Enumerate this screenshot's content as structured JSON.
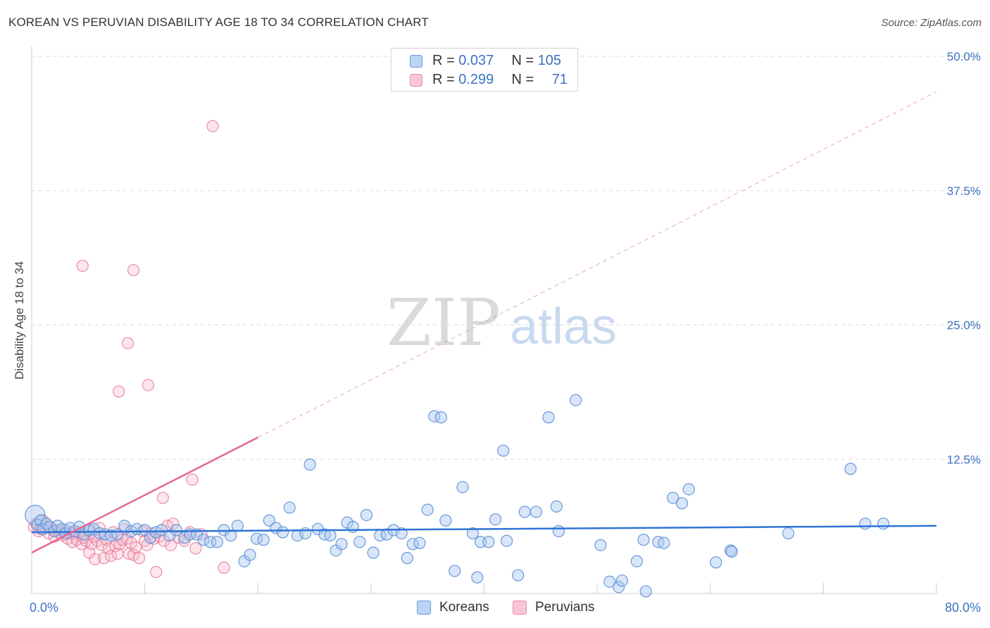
{
  "header": {
    "title": "KOREAN VS PERUVIAN DISABILITY AGE 18 TO 34 CORRELATION CHART",
    "source": "Source: ZipAtlas.com"
  },
  "watermark": {
    "zip": "ZIP",
    "atlas": "atlas"
  },
  "legend_top": {
    "koreans": {
      "r_label": "R = ",
      "r_value": "0.037",
      "n_label": "N = ",
      "n_value": "105"
    },
    "peruvians": {
      "r_label": "R = ",
      "r_value": "0.299",
      "n_label": "N = ",
      "n_value": "71"
    }
  },
  "legend_bottom": {
    "koreans": "Koreans",
    "peruvians": "Peruvians"
  },
  "colors": {
    "korean_fill": "#a8c8f0",
    "korean_stroke": "#5b8fd6",
    "korean_line": "#2e74d6",
    "peruvian_fill": "#f5b6c8",
    "peruvian_stroke": "#e8799a",
    "peruvian_line": "#e56792",
    "grid": "#d9d9d9",
    "tick_label": "#3b72c0"
  },
  "chart_data": {
    "type": "scatter",
    "title": "KOREAN VS PERUVIAN DISABILITY AGE 18 TO 34 CORRELATION CHART",
    "xlabel": "",
    "ylabel": "Disability Age 18 to 34",
    "xlim": [
      0,
      80
    ],
    "ylim": [
      0,
      50
    ],
    "x_tick_labels": [
      "0.0%",
      "80.0%"
    ],
    "y_ticks": [
      12.5,
      25.0,
      37.5,
      50.0
    ],
    "y_tick_labels": [
      "12.5%",
      "25.0%",
      "37.5%",
      "50.0%"
    ],
    "grid": true,
    "legend_position": "top-center",
    "series": [
      {
        "name": "Koreans",
        "r": 0.037,
        "n": 105,
        "trend": {
          "x0": 0,
          "y0": 5.7,
          "x1": 80,
          "y1": 6.3,
          "style": "solid"
        },
        "points": [
          [
            0.3,
            7.3
          ],
          [
            0.5,
            6.4
          ],
          [
            0.8,
            6.8
          ],
          [
            1.0,
            6.0
          ],
          [
            1.3,
            6.5
          ],
          [
            1.6,
            6.2
          ],
          [
            2.0,
            5.8
          ],
          [
            2.3,
            6.3
          ],
          [
            2.7,
            6.0
          ],
          [
            3.0,
            5.6
          ],
          [
            3.4,
            6.1
          ],
          [
            3.8,
            5.8
          ],
          [
            4.2,
            6.2
          ],
          [
            4.6,
            5.5
          ],
          [
            5.1,
            5.9
          ],
          [
            5.5,
            6.0
          ],
          [
            6.0,
            5.6
          ],
          [
            6.5,
            5.5
          ],
          [
            7.0,
            5.4
          ],
          [
            7.6,
            5.5
          ],
          [
            8.2,
            6.3
          ],
          [
            8.8,
            5.8
          ],
          [
            9.3,
            6.0
          ],
          [
            10.0,
            5.9
          ],
          [
            10.5,
            5.2
          ],
          [
            11.0,
            5.7
          ],
          [
            11.5,
            5.9
          ],
          [
            12.2,
            5.4
          ],
          [
            12.8,
            5.9
          ],
          [
            13.5,
            5.2
          ],
          [
            14.0,
            5.5
          ],
          [
            14.6,
            5.5
          ],
          [
            15.2,
            5.0
          ],
          [
            15.8,
            4.8
          ],
          [
            16.4,
            4.8
          ],
          [
            17.0,
            5.9
          ],
          [
            17.6,
            5.4
          ],
          [
            18.2,
            6.3
          ],
          [
            18.8,
            3.0
          ],
          [
            19.3,
            3.6
          ],
          [
            19.9,
            5.1
          ],
          [
            20.5,
            5.0
          ],
          [
            21.0,
            6.8
          ],
          [
            21.6,
            6.1
          ],
          [
            22.2,
            5.7
          ],
          [
            22.8,
            8.0
          ],
          [
            23.5,
            5.4
          ],
          [
            24.2,
            5.6
          ],
          [
            24.6,
            12.0
          ],
          [
            25.3,
            6.0
          ],
          [
            25.9,
            5.5
          ],
          [
            26.4,
            5.4
          ],
          [
            26.9,
            4.0
          ],
          [
            27.4,
            4.6
          ],
          [
            27.9,
            6.6
          ],
          [
            28.4,
            6.2
          ],
          [
            29.0,
            4.8
          ],
          [
            29.6,
            7.3
          ],
          [
            30.2,
            3.8
          ],
          [
            30.8,
            5.4
          ],
          [
            31.4,
            5.5
          ],
          [
            32.0,
            5.9
          ],
          [
            32.7,
            5.6
          ],
          [
            33.2,
            3.3
          ],
          [
            33.7,
            4.6
          ],
          [
            34.3,
            4.7
          ],
          [
            35.0,
            7.8
          ],
          [
            35.6,
            16.5
          ],
          [
            36.2,
            16.4
          ],
          [
            36.6,
            6.8
          ],
          [
            37.4,
            2.1
          ],
          [
            38.1,
            9.9
          ],
          [
            39.0,
            5.6
          ],
          [
            39.4,
            1.5
          ],
          [
            39.7,
            4.8
          ],
          [
            40.4,
            4.8
          ],
          [
            41.0,
            6.9
          ],
          [
            41.7,
            13.3
          ],
          [
            42.0,
            4.9
          ],
          [
            43.0,
            1.7
          ],
          [
            43.6,
            7.6
          ],
          [
            44.6,
            7.6
          ],
          [
            45.7,
            16.4
          ],
          [
            46.4,
            8.1
          ],
          [
            46.6,
            5.8
          ],
          [
            48.1,
            18.0
          ],
          [
            50.3,
            4.5
          ],
          [
            51.1,
            1.1
          ],
          [
            51.9,
            0.6
          ],
          [
            52.2,
            1.2
          ],
          [
            53.5,
            3.0
          ],
          [
            54.1,
            5.0
          ],
          [
            54.3,
            0.2
          ],
          [
            55.4,
            4.8
          ],
          [
            55.9,
            4.7
          ],
          [
            56.7,
            8.9
          ],
          [
            57.5,
            8.4
          ],
          [
            58.1,
            9.7
          ],
          [
            60.5,
            2.9
          ],
          [
            61.8,
            4.0
          ],
          [
            61.9,
            3.9
          ],
          [
            66.9,
            5.6
          ],
          [
            72.4,
            11.6
          ],
          [
            73.7,
            6.5
          ],
          [
            75.3,
            6.5
          ]
        ]
      },
      {
        "name": "Peruvians",
        "r": 0.299,
        "n": 71,
        "trend": {
          "x0": 0,
          "y0": 3.8,
          "x1": 80,
          "y1": 46.7,
          "solid_until_x": 20,
          "style": "solid-then-dashed"
        },
        "points": [
          [
            0.2,
            6.2
          ],
          [
            0.4,
            6.5
          ],
          [
            0.6,
            5.8
          ],
          [
            0.8,
            6.0
          ],
          [
            1.0,
            6.8
          ],
          [
            1.2,
            6.2
          ],
          [
            1.5,
            5.6
          ],
          [
            1.8,
            6.0
          ],
          [
            2.0,
            5.3
          ],
          [
            2.2,
            5.9
          ],
          [
            2.5,
            5.6
          ],
          [
            2.7,
            5.4
          ],
          [
            3.0,
            5.9
          ],
          [
            3.2,
            5.1
          ],
          [
            3.4,
            5.6
          ],
          [
            3.6,
            4.8
          ],
          [
            3.8,
            5.6
          ],
          [
            4.0,
            5.0
          ],
          [
            4.2,
            5.7
          ],
          [
            4.4,
            4.6
          ],
          [
            4.6,
            5.2
          ],
          [
            4.8,
            4.9
          ],
          [
            5.0,
            5.8
          ],
          [
            5.1,
            3.8
          ],
          [
            5.3,
            4.6
          ],
          [
            5.5,
            5.3
          ],
          [
            5.6,
            3.2
          ],
          [
            5.8,
            4.9
          ],
          [
            6.0,
            6.1
          ],
          [
            6.2,
            4.5
          ],
          [
            6.4,
            3.3
          ],
          [
            6.6,
            5.0
          ],
          [
            6.8,
            4.2
          ],
          [
            7.0,
            3.5
          ],
          [
            7.2,
            5.7
          ],
          [
            7.4,
            4.4
          ],
          [
            7.6,
            3.7
          ],
          [
            7.8,
            4.6
          ],
          [
            8.0,
            5.0
          ],
          [
            8.2,
            6.0
          ],
          [
            8.4,
            5.1
          ],
          [
            8.6,
            3.7
          ],
          [
            8.8,
            4.7
          ],
          [
            9.0,
            3.6
          ],
          [
            9.2,
            4.3
          ],
          [
            9.5,
            3.3
          ],
          [
            9.8,
            5.8
          ],
          [
            10.0,
            4.9
          ],
          [
            10.2,
            4.5
          ],
          [
            10.5,
            5.6
          ],
          [
            10.8,
            5.1
          ],
          [
            11.0,
            2.0
          ],
          [
            11.3,
            5.3
          ],
          [
            11.7,
            4.9
          ],
          [
            12.0,
            6.3
          ],
          [
            12.3,
            4.5
          ],
          [
            12.5,
            6.5
          ],
          [
            13.0,
            5.2
          ],
          [
            13.5,
            4.9
          ],
          [
            14.0,
            5.7
          ],
          [
            14.5,
            4.2
          ],
          [
            15.0,
            5.5
          ],
          [
            16.0,
            43.5
          ],
          [
            17.0,
            2.4
          ],
          [
            4.5,
            30.5
          ],
          [
            9.0,
            30.1
          ],
          [
            8.5,
            23.3
          ],
          [
            7.7,
            18.8
          ],
          [
            10.3,
            19.4
          ],
          [
            11.6,
            8.9
          ],
          [
            14.2,
            10.6
          ]
        ]
      }
    ]
  }
}
